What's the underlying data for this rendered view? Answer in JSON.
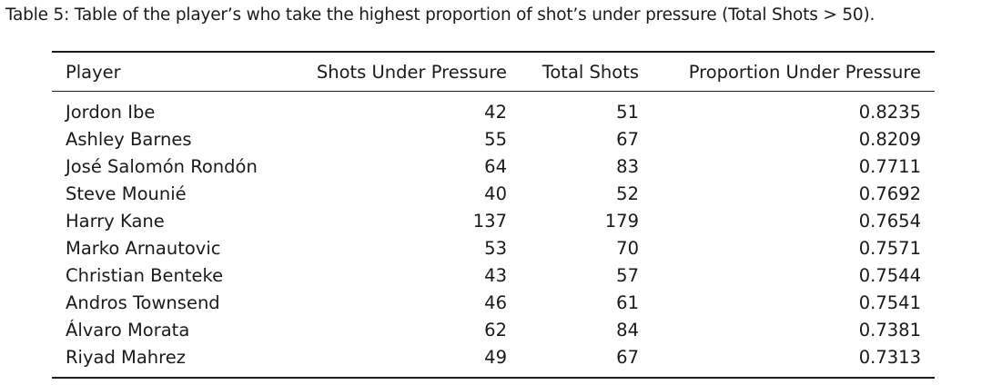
{
  "caption": "Table 5: Table of the player’s who take the highest proportion of shot’s under pressure (Total Shots > 50).",
  "table": {
    "headers": [
      "Player",
      "Shots Under Pressure",
      "Total Shots",
      "Proportion Under Pressure"
    ],
    "rows": [
      [
        "Jordon Ibe",
        "42",
        "51",
        "0.8235"
      ],
      [
        "Ashley Barnes",
        "55",
        "67",
        "0.8209"
      ],
      [
        "José Salomón Rondón",
        "64",
        "83",
        "0.7711"
      ],
      [
        "Steve Mounié",
        "40",
        "52",
        "0.7692"
      ],
      [
        "Harry Kane",
        "137",
        "179",
        "0.7654"
      ],
      [
        "Marko Arnautovic",
        "53",
        "70",
        "0.7571"
      ],
      [
        "Christian Benteke",
        "43",
        "57",
        "0.7544"
      ],
      [
        "Andros Townsend",
        "46",
        "61",
        "0.7541"
      ],
      [
        "Álvaro Morata",
        "62",
        "84",
        "0.7381"
      ],
      [
        "Riyad Mahrez",
        "49",
        "67",
        "0.7313"
      ]
    ]
  }
}
